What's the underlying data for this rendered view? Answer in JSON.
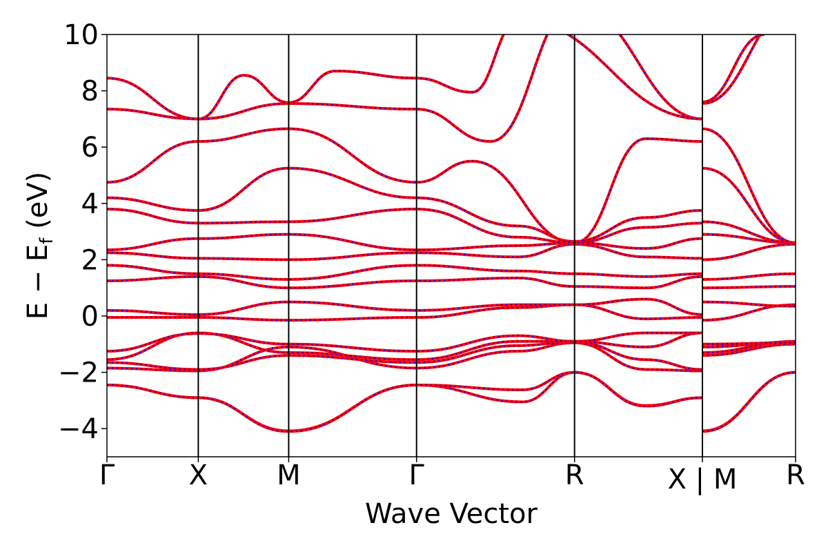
{
  "chart_data": {
    "type": "line",
    "title": "",
    "xlabel": "Wave Vector",
    "ylabel": "E − E_f (eV)",
    "ylabel_parts": {
      "main": "E − E",
      "sub": "f",
      "unit": " (eV)"
    },
    "ylim": [
      -5,
      10
    ],
    "yticks": [
      -4,
      -2,
      0,
      2,
      4,
      6,
      8,
      10
    ],
    "ytick_labels": [
      "−4",
      "−2",
      "0",
      "2",
      "4",
      "6",
      "8",
      "10"
    ],
    "xlim": [
      0,
      7.54
    ],
    "kpoints": [
      {
        "label": "Γ",
        "x": 0.0
      },
      {
        "label": "X",
        "x": 1.0
      },
      {
        "label": "M",
        "x": 1.99
      },
      {
        "label": "Γ",
        "x": 3.39
      },
      {
        "label": "R",
        "x": 5.12
      },
      {
        "label": "X | M",
        "x": 6.52
      },
      {
        "label": "R",
        "x": 7.54
      }
    ],
    "grid": false,
    "legend": "none",
    "style": {
      "main_color": "#ff0000",
      "overlay_color": "#0000ff",
      "overlay": "dotted"
    },
    "bands": [
      {
        "name": "b1",
        "points": [
          [
            0,
            -2.45
          ],
          [
            1,
            -2.9
          ],
          [
            1.99,
            -4.08
          ],
          [
            3.39,
            -2.45
          ],
          [
            4.55,
            -3.05
          ],
          [
            5.12,
            -2.0
          ],
          [
            5.9,
            -3.18
          ],
          [
            6.52,
            -2.9
          ],
          [
            6.52,
            -4.08
          ],
          [
            7.54,
            -2.0
          ]
        ]
      },
      {
        "name": "b2",
        "points": [
          [
            0,
            -2.45
          ],
          [
            1,
            -2.9
          ],
          [
            1.99,
            -4.1
          ],
          [
            3.39,
            -2.45
          ],
          [
            4.55,
            -2.62
          ],
          [
            5.12,
            -2.0
          ],
          [
            5.9,
            -3.2
          ],
          [
            6.52,
            -2.9
          ],
          [
            6.52,
            -4.1
          ],
          [
            7.54,
            -2.0
          ]
        ]
      },
      {
        "name": "b3",
        "points": [
          [
            0,
            -1.85
          ],
          [
            1,
            -1.95
          ],
          [
            1.99,
            -1.1
          ],
          [
            3.39,
            -1.85
          ],
          [
            4.5,
            -1.25
          ],
          [
            5.12,
            -0.95
          ],
          [
            5.9,
            -1.9
          ],
          [
            6.52,
            -1.95
          ],
          [
            6.52,
            -1.1
          ],
          [
            7.54,
            -0.92
          ]
        ]
      },
      {
        "name": "b4",
        "points": [
          [
            0,
            -1.65
          ],
          [
            1,
            -1.9
          ],
          [
            1.99,
            -1.4
          ],
          [
            3.39,
            -1.65
          ],
          [
            4.5,
            -1.05
          ],
          [
            5.12,
            -0.92
          ],
          [
            5.9,
            -1.55
          ],
          [
            6.52,
            -1.9
          ],
          [
            6.52,
            -1.4
          ],
          [
            7.54,
            -1.0
          ]
        ]
      },
      {
        "name": "b5",
        "points": [
          [
            0,
            -1.55
          ],
          [
            1,
            -0.6
          ],
          [
            1.99,
            -1.3
          ],
          [
            3.39,
            -1.55
          ],
          [
            4.5,
            -0.9
          ],
          [
            5.12,
            -0.9
          ],
          [
            5.9,
            -0.6
          ],
          [
            6.52,
            -0.6
          ],
          [
            6.52,
            -1.3
          ],
          [
            7.54,
            -0.9
          ]
        ]
      },
      {
        "name": "b6",
        "points": [
          [
            0,
            -1.25
          ],
          [
            1,
            -0.62
          ],
          [
            1.99,
            -1.0
          ],
          [
            3.39,
            -1.25
          ],
          [
            4.5,
            -0.7
          ],
          [
            5.12,
            -0.9
          ],
          [
            5.9,
            -1.1
          ],
          [
            6.52,
            -0.6
          ],
          [
            6.52,
            -1.0
          ],
          [
            7.54,
            -0.95
          ]
        ]
      },
      {
        "name": "b7",
        "points": [
          [
            0,
            -0.05
          ],
          [
            1,
            -0.05
          ],
          [
            1.99,
            -0.15
          ],
          [
            3.39,
            -0.05
          ],
          [
            4.5,
            0.3
          ],
          [
            5.12,
            0.4
          ],
          [
            5.9,
            -0.1
          ],
          [
            6.52,
            -0.05
          ],
          [
            6.52,
            -0.15
          ],
          [
            7.54,
            0.4
          ]
        ]
      },
      {
        "name": "b8",
        "points": [
          [
            0,
            0.2
          ],
          [
            1,
            0.05
          ],
          [
            1.99,
            0.5
          ],
          [
            3.39,
            0.2
          ],
          [
            4.5,
            0.4
          ],
          [
            5.12,
            0.4
          ],
          [
            5.9,
            0.6
          ],
          [
            6.52,
            0.05
          ],
          [
            6.52,
            0.5
          ],
          [
            7.54,
            0.35
          ]
        ]
      },
      {
        "name": "b9",
        "points": [
          [
            0,
            1.25
          ],
          [
            1,
            1.4
          ],
          [
            1.99,
            1.0
          ],
          [
            3.39,
            1.25
          ],
          [
            4.5,
            1.35
          ],
          [
            5.12,
            1.05
          ],
          [
            5.9,
            1.0
          ],
          [
            6.52,
            1.4
          ],
          [
            6.52,
            1.0
          ],
          [
            7.54,
            1.05
          ]
        ]
      },
      {
        "name": "b10",
        "points": [
          [
            0,
            1.8
          ],
          [
            1,
            1.5
          ],
          [
            1.99,
            1.3
          ],
          [
            3.39,
            1.8
          ],
          [
            4.5,
            1.6
          ],
          [
            5.12,
            1.5
          ],
          [
            5.9,
            1.4
          ],
          [
            6.52,
            1.5
          ],
          [
            6.52,
            1.3
          ],
          [
            7.54,
            1.5
          ]
        ]
      },
      {
        "name": "b11",
        "points": [
          [
            0,
            2.25
          ],
          [
            1,
            2.05
          ],
          [
            1.99,
            2.0
          ],
          [
            3.39,
            2.25
          ],
          [
            4.5,
            2.1
          ],
          [
            5.12,
            2.55
          ],
          [
            5.9,
            2.1
          ],
          [
            6.52,
            2.05
          ],
          [
            6.52,
            2.0
          ],
          [
            7.54,
            2.55
          ]
        ]
      },
      {
        "name": "b12",
        "points": [
          [
            0,
            2.35
          ],
          [
            1,
            2.75
          ],
          [
            1.99,
            2.9
          ],
          [
            3.39,
            2.35
          ],
          [
            4.5,
            2.5
          ],
          [
            5.12,
            2.6
          ],
          [
            5.9,
            2.4
          ],
          [
            6.52,
            2.75
          ],
          [
            6.52,
            2.9
          ],
          [
            7.54,
            2.6
          ]
        ]
      },
      {
        "name": "b13",
        "points": [
          [
            0,
            3.8
          ],
          [
            1,
            3.3
          ],
          [
            1.99,
            3.35
          ],
          [
            3.39,
            3.8
          ],
          [
            4.5,
            2.8
          ],
          [
            5.12,
            2.6
          ],
          [
            5.9,
            3.15
          ],
          [
            6.52,
            3.3
          ],
          [
            6.52,
            3.35
          ],
          [
            7.54,
            2.6
          ]
        ]
      },
      {
        "name": "b14",
        "points": [
          [
            0,
            4.2
          ],
          [
            1,
            3.75
          ],
          [
            1.99,
            5.25
          ],
          [
            3.39,
            4.2
          ],
          [
            4.5,
            3.2
          ],
          [
            5.12,
            2.65
          ],
          [
            5.9,
            3.5
          ],
          [
            6.52,
            3.75
          ],
          [
            6.52,
            5.25
          ],
          [
            7.54,
            2.6
          ]
        ]
      },
      {
        "name": "b15",
        "points": [
          [
            0,
            4.75
          ],
          [
            1,
            6.2
          ],
          [
            1.99,
            6.65
          ],
          [
            3.39,
            4.75
          ],
          [
            4.0,
            5.5
          ],
          [
            5.12,
            2.6
          ],
          [
            5.9,
            6.3
          ],
          [
            6.52,
            6.2
          ],
          [
            6.52,
            6.65
          ],
          [
            7.54,
            2.6
          ]
        ]
      },
      {
        "name": "b16",
        "points": [
          [
            0,
            7.35
          ],
          [
            1,
            7.0
          ],
          [
            1.99,
            7.55
          ],
          [
            3.39,
            7.35
          ],
          [
            4.2,
            6.2
          ],
          [
            5.12,
            11.0
          ],
          [
            6.52,
            7.0
          ],
          [
            6.52,
            7.55
          ],
          [
            7.54,
            11.0
          ]
        ]
      },
      {
        "name": "b17",
        "points": [
          [
            0,
            8.45
          ],
          [
            1,
            7.0
          ],
          [
            1.5,
            8.55
          ],
          [
            1.99,
            7.58
          ],
          [
            2.5,
            8.7
          ],
          [
            3.39,
            8.45
          ],
          [
            4.0,
            7.95
          ],
          [
            4.5,
            10.5
          ],
          [
            6.52,
            7.0
          ],
          [
            6.52,
            7.6
          ],
          [
            7.2,
            10.0
          ]
        ]
      }
    ]
  }
}
